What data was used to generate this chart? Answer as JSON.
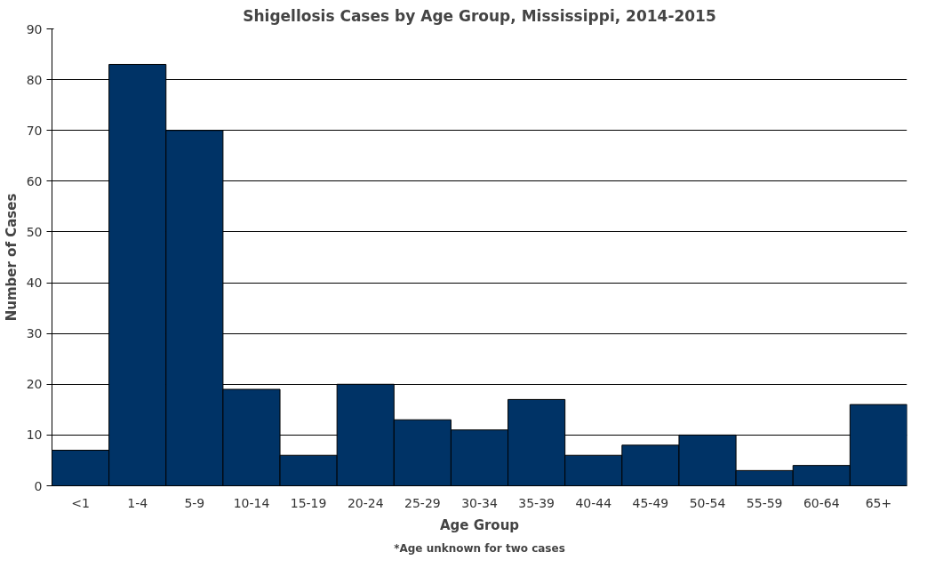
{
  "chart_data": {
    "type": "bar",
    "title": "Shigellosis Cases by Age Group, Mississippi, 2014-2015",
    "xlabel": "Age Group",
    "ylabel": "Number of Cases",
    "annotations": [
      "*Age unknown for two cases"
    ],
    "categories": [
      "<1",
      "1-4",
      "5-9",
      "10-14",
      "15-19",
      "20-24",
      "25-29",
      "30-34",
      "35-39",
      "40-44",
      "45-49",
      "50-54",
      "55-59",
      "60-64",
      "65+"
    ],
    "values": [
      7,
      83,
      70,
      19,
      6,
      20,
      13,
      11,
      17,
      6,
      8,
      10,
      3,
      4,
      16
    ],
    "color": "#003366",
    "ylim": [
      0,
      90
    ],
    "yticks": [
      0,
      10,
      20,
      30,
      40,
      50,
      60,
      70,
      80,
      90
    ],
    "grid": "y"
  }
}
